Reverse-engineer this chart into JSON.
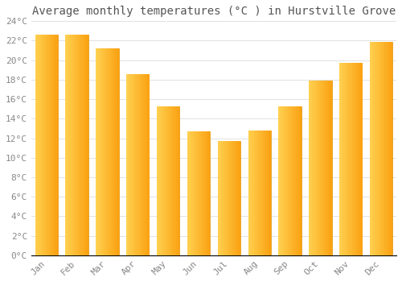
{
  "title": "Average monthly temperatures (°C ) in Hurstville Grove",
  "months": [
    "Jan",
    "Feb",
    "Mar",
    "Apr",
    "May",
    "Jun",
    "Jul",
    "Aug",
    "Sep",
    "Oct",
    "Nov",
    "Dec"
  ],
  "temperatures": [
    22.6,
    22.6,
    21.2,
    18.6,
    15.3,
    12.7,
    11.7,
    12.8,
    15.3,
    17.9,
    19.7,
    21.9
  ],
  "bar_color_left": "#FFD060",
  "bar_color_right": "#FFA010",
  "background_color": "#FFFFFF",
  "grid_color": "#DDDDDD",
  "ylim": [
    0,
    24
  ],
  "yticks": [
    0,
    2,
    4,
    6,
    8,
    10,
    12,
    14,
    16,
    18,
    20,
    22,
    24
  ],
  "tick_label_color": "#888888",
  "title_fontsize": 10,
  "axis_fontsize": 8,
  "font_family": "monospace"
}
